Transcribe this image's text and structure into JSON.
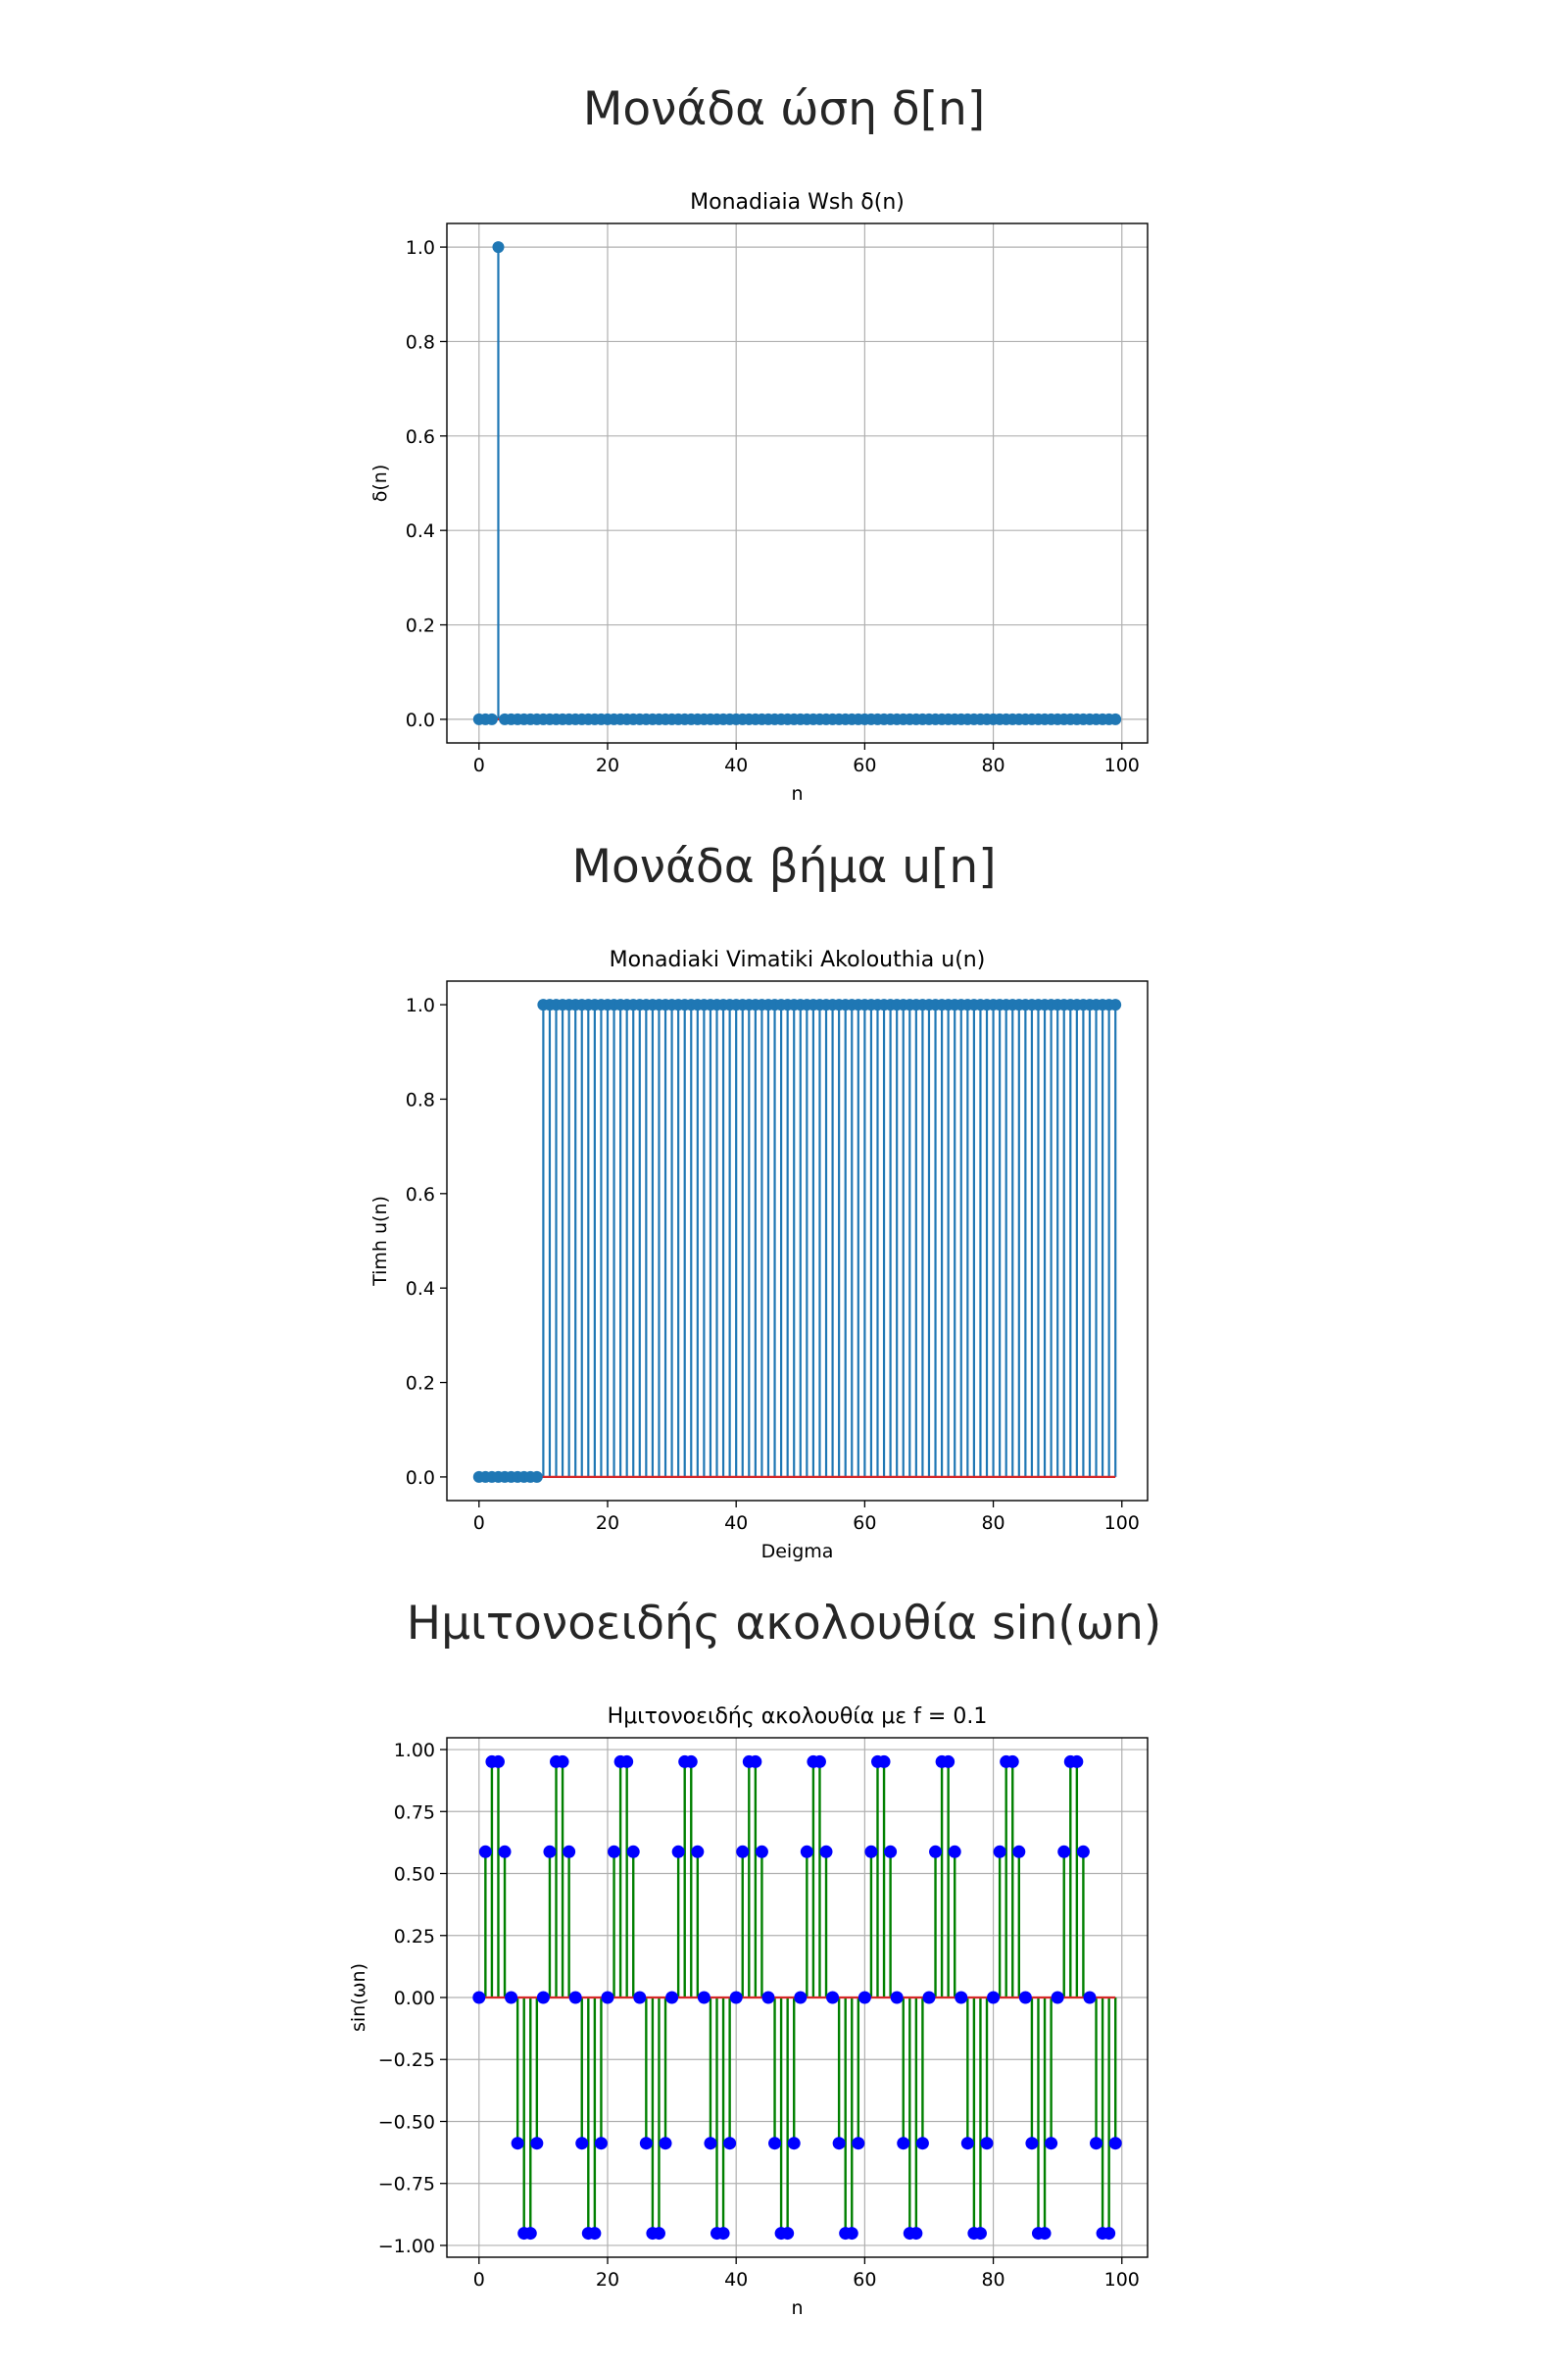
{
  "sections": [
    {
      "title": "Μονάδα ώση δ[n]"
    },
    {
      "title": "Μονάδα βήμα u[n]"
    },
    {
      "title": "Ημιτονοειδής ακολουθία sin(ωn)"
    }
  ],
  "chart_data": [
    {
      "type": "stem",
      "title": "Monadiaia Wsh δ(n)",
      "xlabel": "n",
      "ylabel": "δ(n)",
      "xlim": [
        -5,
        104
      ],
      "ylim": [
        -0.05,
        1.05
      ],
      "xticks": [
        0,
        20,
        40,
        60,
        80,
        100
      ],
      "yticks": [
        0.0,
        0.2,
        0.4,
        0.6,
        0.8,
        1.0
      ],
      "xtick_labels": [
        "0",
        "20",
        "40",
        "60",
        "80",
        "100"
      ],
      "ytick_labels": [
        "0.0",
        "0.2",
        "0.4",
        "0.6",
        "0.8",
        "1.0"
      ],
      "grid": true,
      "line_color": "#1f77b4",
      "marker_color": "#1f77b4",
      "baseline_color": "#d62728",
      "x": [
        0,
        1,
        2,
        3,
        4,
        5,
        6,
        7,
        8,
        9,
        10,
        11,
        12,
        13,
        14,
        15,
        16,
        17,
        18,
        19,
        20,
        21,
        22,
        23,
        24,
        25,
        26,
        27,
        28,
        29,
        30,
        31,
        32,
        33,
        34,
        35,
        36,
        37,
        38,
        39,
        40,
        41,
        42,
        43,
        44,
        45,
        46,
        47,
        48,
        49,
        50,
        51,
        52,
        53,
        54,
        55,
        56,
        57,
        58,
        59,
        60,
        61,
        62,
        63,
        64,
        65,
        66,
        67,
        68,
        69,
        70,
        71,
        72,
        73,
        74,
        75,
        76,
        77,
        78,
        79,
        80,
        81,
        82,
        83,
        84,
        85,
        86,
        87,
        88,
        89,
        90,
        91,
        92,
        93,
        94,
        95,
        96,
        97,
        98,
        99
      ],
      "y": [
        0,
        0,
        0,
        1,
        0,
        0,
        0,
        0,
        0,
        0,
        0,
        0,
        0,
        0,
        0,
        0,
        0,
        0,
        0,
        0,
        0,
        0,
        0,
        0,
        0,
        0,
        0,
        0,
        0,
        0,
        0,
        0,
        0,
        0,
        0,
        0,
        0,
        0,
        0,
        0,
        0,
        0,
        0,
        0,
        0,
        0,
        0,
        0,
        0,
        0,
        0,
        0,
        0,
        0,
        0,
        0,
        0,
        0,
        0,
        0,
        0,
        0,
        0,
        0,
        0,
        0,
        0,
        0,
        0,
        0,
        0,
        0,
        0,
        0,
        0,
        0,
        0,
        0,
        0,
        0,
        0,
        0,
        0,
        0,
        0,
        0,
        0,
        0,
        0,
        0,
        0,
        0,
        0,
        0,
        0,
        0,
        0,
        0,
        0,
        0
      ]
    },
    {
      "type": "stem",
      "title": "Monadiaki Vimatiki Akolouthia u(n)",
      "xlabel": "Deigma",
      "ylabel": "Timh u(n)",
      "xlim": [
        -5,
        104
      ],
      "ylim": [
        -0.05,
        1.05
      ],
      "xticks": [
        0,
        20,
        40,
        60,
        80,
        100
      ],
      "yticks": [
        0.0,
        0.2,
        0.4,
        0.6,
        0.8,
        1.0
      ],
      "xtick_labels": [
        "0",
        "20",
        "40",
        "60",
        "80",
        "100"
      ],
      "ytick_labels": [
        "0.0",
        "0.2",
        "0.4",
        "0.6",
        "0.8",
        "1.0"
      ],
      "grid": false,
      "line_color": "#1f77b4",
      "marker_color": "#1f77b4",
      "baseline_color": "#d62728",
      "x": [
        0,
        1,
        2,
        3,
        4,
        5,
        6,
        7,
        8,
        9,
        10,
        11,
        12,
        13,
        14,
        15,
        16,
        17,
        18,
        19,
        20,
        21,
        22,
        23,
        24,
        25,
        26,
        27,
        28,
        29,
        30,
        31,
        32,
        33,
        34,
        35,
        36,
        37,
        38,
        39,
        40,
        41,
        42,
        43,
        44,
        45,
        46,
        47,
        48,
        49,
        50,
        51,
        52,
        53,
        54,
        55,
        56,
        57,
        58,
        59,
        60,
        61,
        62,
        63,
        64,
        65,
        66,
        67,
        68,
        69,
        70,
        71,
        72,
        73,
        74,
        75,
        76,
        77,
        78,
        79,
        80,
        81,
        82,
        83,
        84,
        85,
        86,
        87,
        88,
        89,
        90,
        91,
        92,
        93,
        94,
        95,
        96,
        97,
        98,
        99
      ],
      "y": [
        0,
        0,
        0,
        0,
        0,
        0,
        0,
        0,
        0,
        0,
        1,
        1,
        1,
        1,
        1,
        1,
        1,
        1,
        1,
        1,
        1,
        1,
        1,
        1,
        1,
        1,
        1,
        1,
        1,
        1,
        1,
        1,
        1,
        1,
        1,
        1,
        1,
        1,
        1,
        1,
        1,
        1,
        1,
        1,
        1,
        1,
        1,
        1,
        1,
        1,
        1,
        1,
        1,
        1,
        1,
        1,
        1,
        1,
        1,
        1,
        1,
        1,
        1,
        1,
        1,
        1,
        1,
        1,
        1,
        1,
        1,
        1,
        1,
        1,
        1,
        1,
        1,
        1,
        1,
        1,
        1,
        1,
        1,
        1,
        1,
        1,
        1,
        1,
        1,
        1,
        1,
        1,
        1,
        1,
        1,
        1,
        1,
        1,
        1,
        1
      ]
    },
    {
      "type": "stem",
      "title": "Ημιτονοειδής ακολουθία με f = 0.1",
      "xlabel": "n",
      "ylabel": "sin(ωn)",
      "xlim": [
        -5,
        104
      ],
      "ylim": [
        -1.0476,
        1.0476
      ],
      "xticks": [
        0,
        20,
        40,
        60,
        80,
        100
      ],
      "yticks": [
        -1.0,
        -0.75,
        -0.5,
        -0.25,
        0.0,
        0.25,
        0.5,
        0.75,
        1.0
      ],
      "xtick_labels": [
        "0",
        "20",
        "40",
        "60",
        "80",
        "100"
      ],
      "ytick_labels": [
        "−1.00",
        "−0.75",
        "−0.50",
        "−0.25",
        "0.00",
        "0.25",
        "0.50",
        "0.75",
        "1.00"
      ],
      "grid": true,
      "line_color": "#008000",
      "marker_color": "#0000ff",
      "baseline_color": "#d62728",
      "x": [
        0,
        1,
        2,
        3,
        4,
        5,
        6,
        7,
        8,
        9,
        10,
        11,
        12,
        13,
        14,
        15,
        16,
        17,
        18,
        19,
        20,
        21,
        22,
        23,
        24,
        25,
        26,
        27,
        28,
        29,
        30,
        31,
        32,
        33,
        34,
        35,
        36,
        37,
        38,
        39,
        40,
        41,
        42,
        43,
        44,
        45,
        46,
        47,
        48,
        49,
        50,
        51,
        52,
        53,
        54,
        55,
        56,
        57,
        58,
        59,
        60,
        61,
        62,
        63,
        64,
        65,
        66,
        67,
        68,
        69,
        70,
        71,
        72,
        73,
        74,
        75,
        76,
        77,
        78,
        79,
        80,
        81,
        82,
        83,
        84,
        85,
        86,
        87,
        88,
        89,
        90,
        91,
        92,
        93,
        94,
        95,
        96,
        97,
        98,
        99
      ],
      "y": [
        0,
        0.5878,
        0.9511,
        0.9511,
        0.5878,
        0,
        -0.5878,
        -0.9511,
        -0.9511,
        -0.5878,
        0,
        0.5878,
        0.9511,
        0.9511,
        0.5878,
        0,
        -0.5878,
        -0.9511,
        -0.9511,
        -0.5878,
        0,
        0.5878,
        0.9511,
        0.9511,
        0.5878,
        0,
        -0.5878,
        -0.9511,
        -0.9511,
        -0.5878,
        0,
        0.5878,
        0.9511,
        0.9511,
        0.5878,
        0,
        -0.5878,
        -0.9511,
        -0.9511,
        -0.5878,
        0,
        0.5878,
        0.9511,
        0.9511,
        0.5878,
        0,
        -0.5878,
        -0.9511,
        -0.9511,
        -0.5878,
        0,
        0.5878,
        0.9511,
        0.9511,
        0.5878,
        0,
        -0.5878,
        -0.9511,
        -0.9511,
        -0.5878,
        0,
        0.5878,
        0.9511,
        0.9511,
        0.5878,
        0,
        -0.5878,
        -0.9511,
        -0.9511,
        -0.5878,
        0,
        0.5878,
        0.9511,
        0.9511,
        0.5878,
        0,
        -0.5878,
        -0.9511,
        -0.9511,
        -0.5878,
        0,
        0.5878,
        0.9511,
        0.9511,
        0.5878,
        0,
        -0.5878,
        -0.9511,
        -0.9511,
        -0.5878,
        0,
        0.5878,
        0.9511,
        0.9511,
        0.5878,
        0,
        -0.5878,
        -0.9511,
        -0.9511,
        -0.5878
      ]
    }
  ]
}
